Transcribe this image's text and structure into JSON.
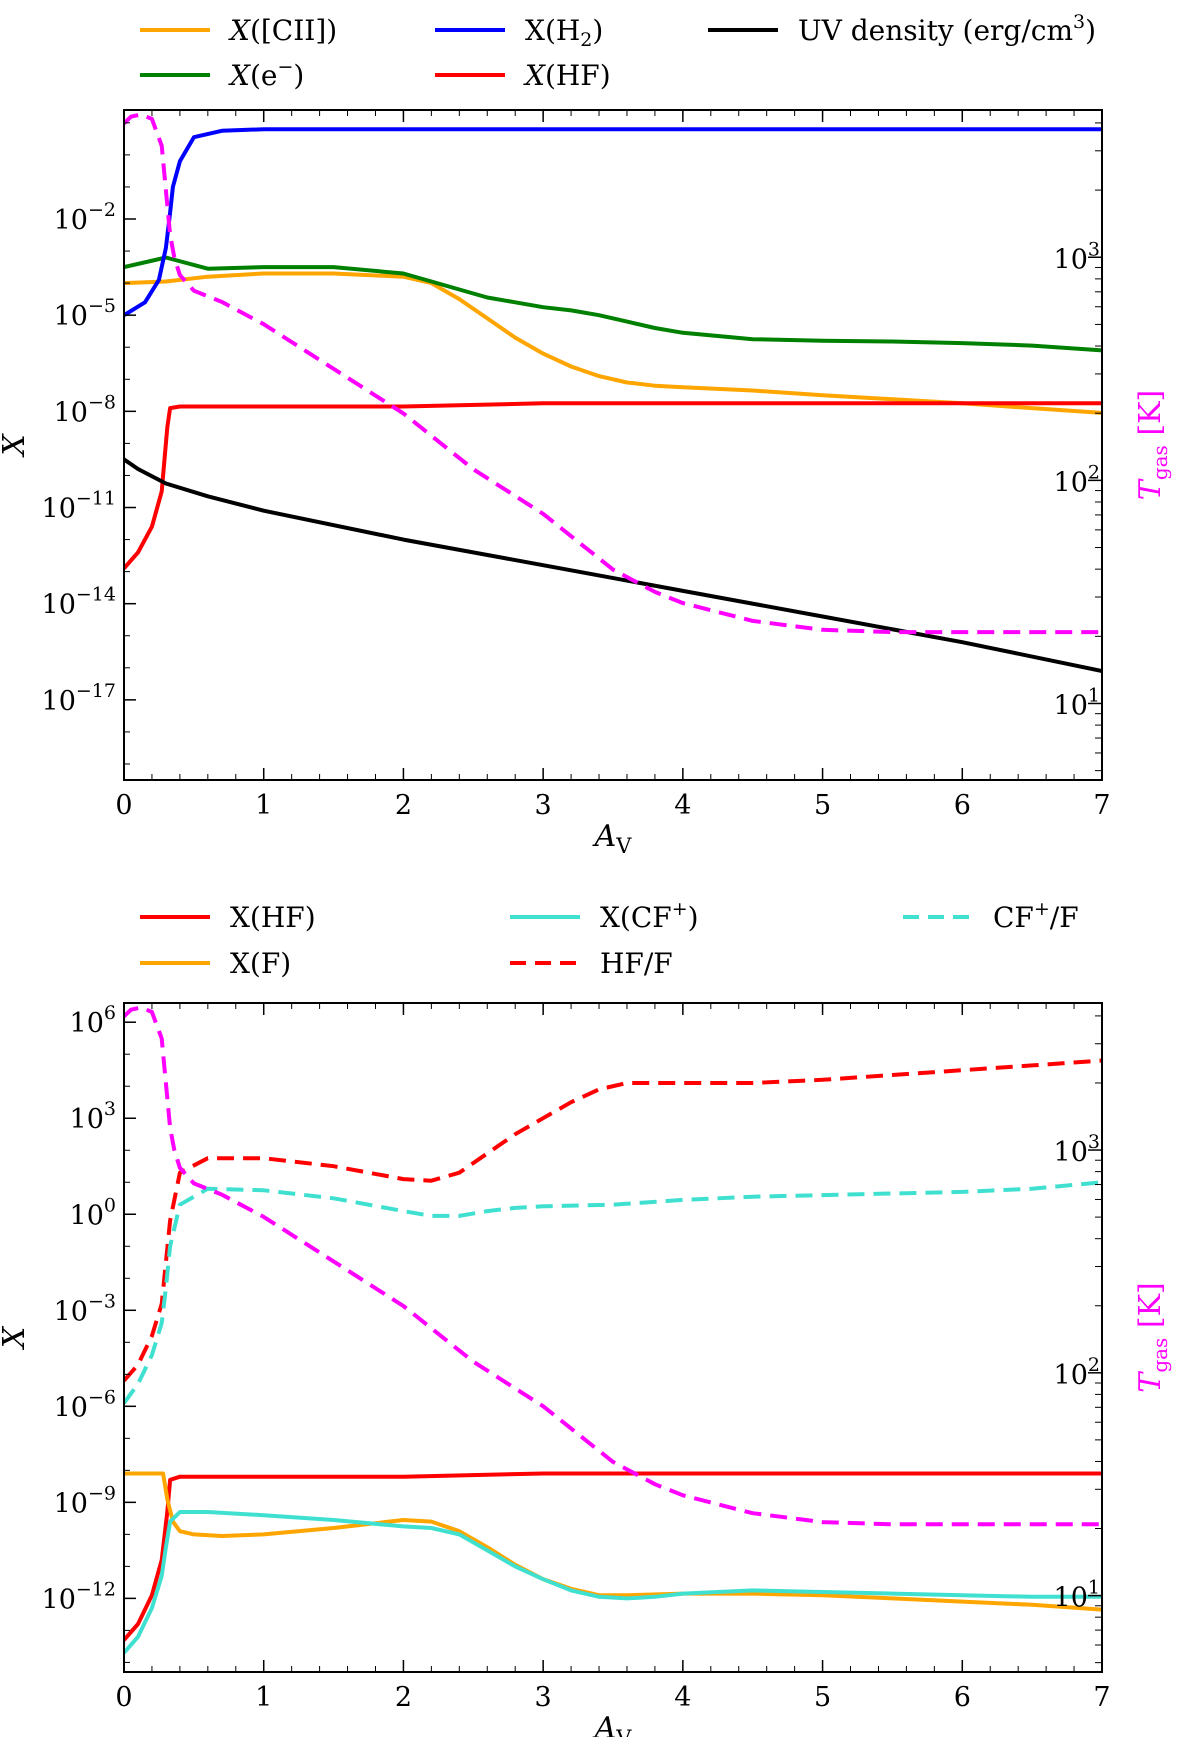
{
  "chart_data": [
    {
      "type": "line",
      "xlabel": "A_V",
      "ylabel": "X",
      "y2label": "T_gas [K]",
      "xlim": [
        0,
        7
      ],
      "ylog": true,
      "ylim_log10": [
        -19.5,
        1.4
      ],
      "y2log": true,
      "y2lim_log10": [
        0.657,
        3.66
      ],
      "x_ticks": [
        0,
        1,
        2,
        3,
        4,
        5,
        6,
        7
      ],
      "y_ticks_log10": [
        -17,
        -14,
        -11,
        -8,
        -5,
        -2
      ],
      "y2_ticks_log10": [
        1,
        2,
        3
      ],
      "legend_position": "top",
      "legend": [
        {
          "label_main": "X",
          "label_arg": "([CII])",
          "sup": "",
          "post": "",
          "color": "#ffa500",
          "dashed": false,
          "italic": true
        },
        {
          "label_main": "X",
          "label_arg": "(H",
          "sub": "2",
          "post": ")",
          "color": "#0000ff",
          "dashed": false,
          "italic": false
        },
        {
          "label_main": "UV density (erg/cm",
          "sup": "3",
          "post": ")",
          "color": "#000000",
          "dashed": false,
          "italic": false
        },
        {
          "label_main": "X",
          "label_arg": "(e",
          "sup": "−",
          "post": ")",
          "color": "#008000",
          "dashed": false,
          "italic": true
        },
        {
          "label_main": "X",
          "label_arg": "(HF)",
          "color": "#ff0000",
          "dashed": false,
          "italic": true
        }
      ],
      "series": [
        {
          "name": "X([CII])",
          "color": "#ffa500",
          "dashed": false,
          "axis": "left",
          "x": [
            0,
            0.3,
            0.6,
            1.0,
            1.5,
            2.0,
            2.2,
            2.4,
            2.6,
            2.8,
            3.0,
            3.2,
            3.4,
            3.6,
            3.8,
            4.0,
            4.5,
            5.0,
            5.5,
            6.0,
            6.5,
            7.0
          ],
          "y": [
            -4.0,
            -3.95,
            -3.8,
            -3.7,
            -3.7,
            -3.8,
            -4.0,
            -4.5,
            -5.1,
            -5.7,
            -6.2,
            -6.6,
            -6.9,
            -7.1,
            -7.2,
            -7.25,
            -7.35,
            -7.5,
            -7.62,
            -7.75,
            -7.9,
            -8.05
          ]
        },
        {
          "name": "X(e−)",
          "color": "#008000",
          "dashed": false,
          "axis": "left",
          "x": [
            0,
            0.3,
            0.6,
            1.0,
            1.5,
            2.0,
            2.2,
            2.4,
            2.6,
            2.8,
            3.0,
            3.2,
            3.4,
            3.6,
            3.8,
            4.0,
            4.5,
            5.0,
            5.5,
            6.0,
            6.5,
            7.0
          ],
          "y": [
            -3.5,
            -3.2,
            -3.55,
            -3.5,
            -3.5,
            -3.7,
            -3.95,
            -4.2,
            -4.45,
            -4.6,
            -4.75,
            -4.85,
            -5.0,
            -5.2,
            -5.4,
            -5.55,
            -5.75,
            -5.8,
            -5.82,
            -5.87,
            -5.95,
            -6.1
          ]
        },
        {
          "name": "X(H2)",
          "color": "#0000ff",
          "dashed": false,
          "axis": "left",
          "x": [
            0,
            0.15,
            0.25,
            0.3,
            0.33,
            0.35,
            0.4,
            0.5,
            0.7,
            1.0,
            2.0,
            4.0,
            7.0
          ],
          "y": [
            -5.0,
            -4.6,
            -3.9,
            -2.9,
            -1.8,
            -1.0,
            -0.2,
            0.55,
            0.75,
            0.8,
            0.8,
            0.8,
            0.8
          ]
        },
        {
          "name": "X(HF)",
          "color": "#ff0000",
          "dashed": false,
          "axis": "left",
          "x": [
            0,
            0.1,
            0.2,
            0.27,
            0.31,
            0.33,
            0.4,
            1.0,
            2.0,
            3.0,
            4.0,
            5.0,
            6.0,
            7.0
          ],
          "y": [
            -12.9,
            -12.4,
            -11.6,
            -10.5,
            -8.5,
            -7.9,
            -7.85,
            -7.85,
            -7.85,
            -7.75,
            -7.75,
            -7.75,
            -7.75,
            -7.75
          ]
        },
        {
          "name": "UV density",
          "color": "#000000",
          "dashed": false,
          "axis": "left",
          "x": [
            0,
            0.1,
            0.3,
            0.6,
            1.0,
            2.0,
            3.0,
            4.0,
            5.0,
            6.0,
            7.0
          ],
          "y": [
            -9.5,
            -9.8,
            -10.25,
            -10.65,
            -11.1,
            -12.0,
            -12.8,
            -13.6,
            -14.4,
            -15.2,
            -16.1
          ]
        },
        {
          "name": "T_gas",
          "color": "#ff00ff",
          "dashed": true,
          "axis": "right",
          "x": [
            0,
            0.05,
            0.12,
            0.2,
            0.27,
            0.3,
            0.33,
            0.36,
            0.4,
            0.5,
            0.7,
            1.0,
            1.5,
            2.0,
            2.5,
            3.0,
            3.5,
            3.8,
            4.0,
            4.5,
            5.0,
            5.5,
            6.0,
            6.5,
            7.0
          ],
          "y": [
            3.6,
            3.63,
            3.64,
            3.62,
            3.5,
            3.3,
            3.1,
            3.0,
            2.92,
            2.85,
            2.8,
            2.7,
            2.5,
            2.3,
            2.05,
            1.85,
            1.6,
            1.5,
            1.45,
            1.37,
            1.33,
            1.32,
            1.32,
            1.32,
            1.32
          ]
        }
      ]
    },
    {
      "type": "line",
      "xlabel": "A_V",
      "ylabel": "X",
      "y2label": "T_gas [K]",
      "xlim": [
        0,
        7
      ],
      "ylog": true,
      "ylim_log10": [
        -14.3,
        6.6
      ],
      "y2log": true,
      "y2lim_log10": [
        0.657,
        3.66
      ],
      "x_ticks": [
        0,
        1,
        2,
        3,
        4,
        5,
        6,
        7
      ],
      "y_ticks_log10": [
        -12,
        -9,
        -6,
        -3,
        0,
        3,
        6
      ],
      "y2_ticks_log10": [
        1,
        2,
        3
      ],
      "legend_position": "top",
      "legend": [
        {
          "label_main": "X(HF)",
          "color": "#ff0000",
          "dashed": false
        },
        {
          "label_main": "X(CF",
          "sup": "+",
          "post": ")",
          "color": "#40e0d0",
          "dashed": false
        },
        {
          "label_main": "CF",
          "sup": "+",
          "post": "/F",
          "color": "#40e0d0",
          "dashed": true
        },
        {
          "label_main": "X(F)",
          "color": "#ffa500",
          "dashed": false
        },
        {
          "label_main": "HF/F",
          "color": "#ff0000",
          "dashed": true
        }
      ],
      "series": [
        {
          "name": "X(HF)",
          "color": "#ff0000",
          "dashed": false,
          "axis": "left",
          "x": [
            0,
            0.1,
            0.2,
            0.27,
            0.31,
            0.33,
            0.4,
            1.0,
            2.0,
            3.0,
            4.0,
            5.0,
            6.0,
            7.0
          ],
          "y": [
            -13.3,
            -12.8,
            -11.9,
            -10.8,
            -9.3,
            -8.3,
            -8.2,
            -8.2,
            -8.2,
            -8.1,
            -8.1,
            -8.1,
            -8.1,
            -8.1
          ]
        },
        {
          "name": "X(F)",
          "color": "#ffa500",
          "dashed": false,
          "axis": "left",
          "x": [
            0,
            0.28,
            0.31,
            0.35,
            0.4,
            0.5,
            0.7,
            1.0,
            1.5,
            2.0,
            2.2,
            2.4,
            2.6,
            2.8,
            3.0,
            3.2,
            3.4,
            3.6,
            4.0,
            4.5,
            5.0,
            5.5,
            6.0,
            6.5,
            7.0
          ],
          "y": [
            -8.1,
            -8.1,
            -8.9,
            -9.6,
            -9.9,
            -10.0,
            -10.05,
            -10.0,
            -9.8,
            -9.55,
            -9.6,
            -9.9,
            -10.4,
            -10.95,
            -11.4,
            -11.7,
            -11.9,
            -11.9,
            -11.85,
            -11.85,
            -11.9,
            -12.0,
            -12.1,
            -12.2,
            -12.35
          ]
        },
        {
          "name": "X(CF+)",
          "color": "#40e0d0",
          "dashed": false,
          "axis": "left",
          "x": [
            0,
            0.1,
            0.2,
            0.27,
            0.3,
            0.33,
            0.4,
            0.6,
            1.0,
            1.5,
            2.0,
            2.2,
            2.4,
            2.6,
            2.8,
            3.0,
            3.2,
            3.4,
            3.6,
            3.8,
            4.0,
            4.5,
            5.0,
            5.5,
            6.0,
            6.5,
            7.0
          ],
          "y": [
            -13.7,
            -13.2,
            -12.3,
            -11.3,
            -10.4,
            -9.6,
            -9.3,
            -9.3,
            -9.4,
            -9.55,
            -9.75,
            -9.8,
            -10.0,
            -10.5,
            -11.0,
            -11.4,
            -11.75,
            -11.95,
            -12.0,
            -11.95,
            -11.85,
            -11.75,
            -11.8,
            -11.85,
            -11.9,
            -11.95,
            -11.95
          ]
        },
        {
          "name": "HF/F",
          "color": "#ff0000",
          "dashed": true,
          "axis": "left",
          "x": [
            0,
            0.1,
            0.2,
            0.27,
            0.3,
            0.33,
            0.4,
            0.6,
            1.0,
            1.5,
            2.0,
            2.2,
            2.4,
            2.6,
            2.8,
            3.0,
            3.2,
            3.4,
            3.6,
            4.0,
            4.5,
            5.0,
            5.5,
            6.0,
            6.5,
            7.0
          ],
          "y": [
            -5.2,
            -4.7,
            -3.8,
            -2.8,
            -1.5,
            -0.2,
            1.3,
            1.75,
            1.75,
            1.5,
            1.1,
            1.05,
            1.3,
            1.9,
            2.5,
            3.0,
            3.5,
            3.9,
            4.1,
            4.1,
            4.1,
            4.2,
            4.35,
            4.5,
            4.65,
            4.8
          ]
        },
        {
          "name": "CF+/F",
          "color": "#40e0d0",
          "dashed": true,
          "axis": "left",
          "x": [
            0,
            0.1,
            0.2,
            0.27,
            0.3,
            0.33,
            0.4,
            0.6,
            1.0,
            1.5,
            2.0,
            2.2,
            2.4,
            2.6,
            2.8,
            3.0,
            3.5,
            4.0,
            4.5,
            5.0,
            5.5,
            6.0,
            6.5,
            7.0
          ],
          "y": [
            -5.9,
            -5.3,
            -4.4,
            -3.4,
            -2.3,
            -1.0,
            0.3,
            0.8,
            0.75,
            0.5,
            0.1,
            -0.05,
            -0.05,
            0.1,
            0.2,
            0.25,
            0.3,
            0.45,
            0.55,
            0.6,
            0.65,
            0.7,
            0.8,
            1.0
          ]
        },
        {
          "name": "T_gas",
          "color": "#ff00ff",
          "dashed": true,
          "axis": "right",
          "x": [
            0,
            0.05,
            0.12,
            0.2,
            0.27,
            0.3,
            0.33,
            0.36,
            0.4,
            0.5,
            0.7,
            1.0,
            1.5,
            2.0,
            2.5,
            3.0,
            3.5,
            3.8,
            4.0,
            4.5,
            5.0,
            5.5,
            6.0,
            6.5,
            7.0
          ],
          "y": [
            3.6,
            3.63,
            3.64,
            3.62,
            3.5,
            3.3,
            3.1,
            3.0,
            2.92,
            2.85,
            2.8,
            2.7,
            2.5,
            2.3,
            2.05,
            1.85,
            1.6,
            1.5,
            1.45,
            1.37,
            1.33,
            1.32,
            1.32,
            1.32,
            1.32
          ]
        }
      ]
    }
  ]
}
